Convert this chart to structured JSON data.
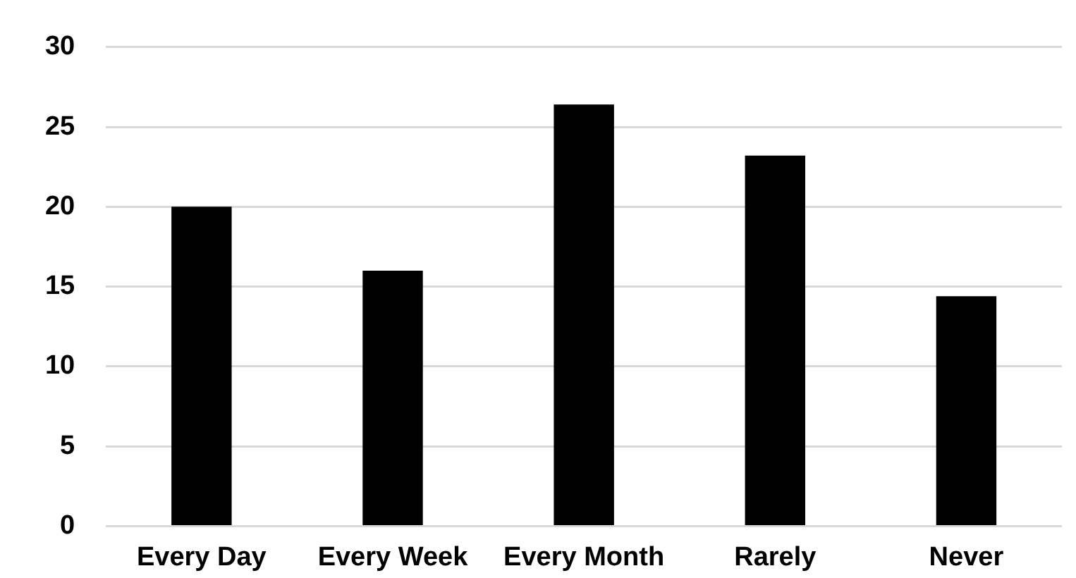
{
  "chart_data": {
    "type": "bar",
    "categories": [
      "Every Day",
      "Every Week",
      "Every Month",
      "Rarely",
      "Never"
    ],
    "values": [
      20,
      16,
      26.4,
      23.2,
      14.4
    ],
    "color": "#000000",
    "ylim": [
      0,
      30
    ],
    "yticks": [
      0,
      5,
      10,
      15,
      20,
      25,
      30
    ],
    "grid": "y"
  }
}
